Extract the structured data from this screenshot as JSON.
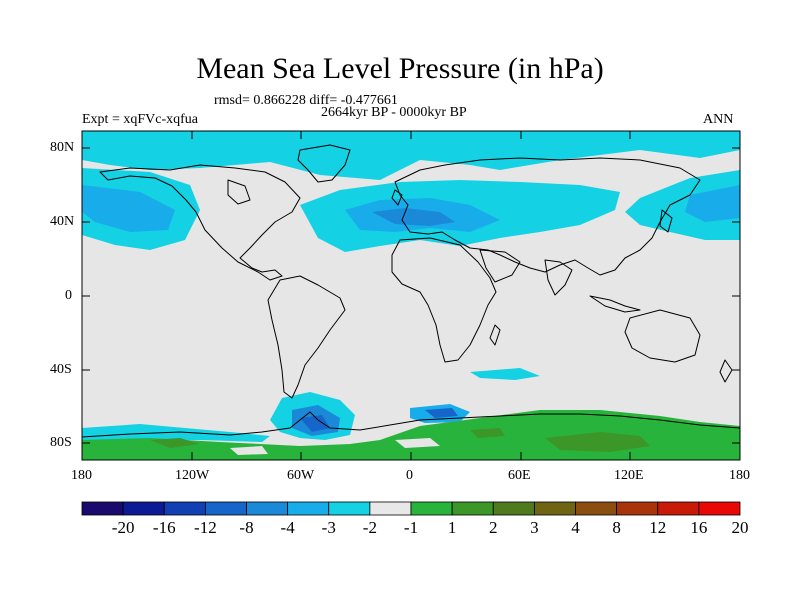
{
  "title": "Mean Sea Level Pressure (in hPa)",
  "stats": "rmsd= 0.866228 diff= -0.477661",
  "period": "2664kyr BP - 0000kyr BP",
  "expt": "Expt = xqFVc-xqfua",
  "season": "ANN",
  "lat_labels": [
    "80N",
    "40N",
    "0",
    "40S",
    "80S"
  ],
  "lon_labels": [
    "180",
    "120W",
    "60W",
    "0",
    "60E",
    "120E",
    "180"
  ],
  "colorbar": {
    "labels": [
      "-20",
      "-16",
      "-12",
      "-8",
      "-4",
      "-3",
      "-2",
      "-1",
      "1",
      "2",
      "3",
      "4",
      "8",
      "12",
      "16",
      "20"
    ],
    "colors": [
      "#1a0a6e",
      "#0d1a96",
      "#1040b4",
      "#1566c8",
      "#1a8ad8",
      "#18acea",
      "#14d2e4",
      "#e8e8e8",
      "#28b43c",
      "#3c9628",
      "#507a1e",
      "#6e6414",
      "#8a4e10",
      "#a8340c",
      "#c81a08",
      "#e80806"
    ]
  },
  "colors": {
    "land_outline": "#000000",
    "neutral": "#e6e6e6",
    "blue_light": "#14d2e4",
    "blue_mid": "#18acea",
    "blue_dark": "#1a8ad8",
    "blue_deep": "#1566c8",
    "blue_navy": "#1040b4",
    "green": "#28b43c",
    "green_dark": "#3c9628"
  }
}
